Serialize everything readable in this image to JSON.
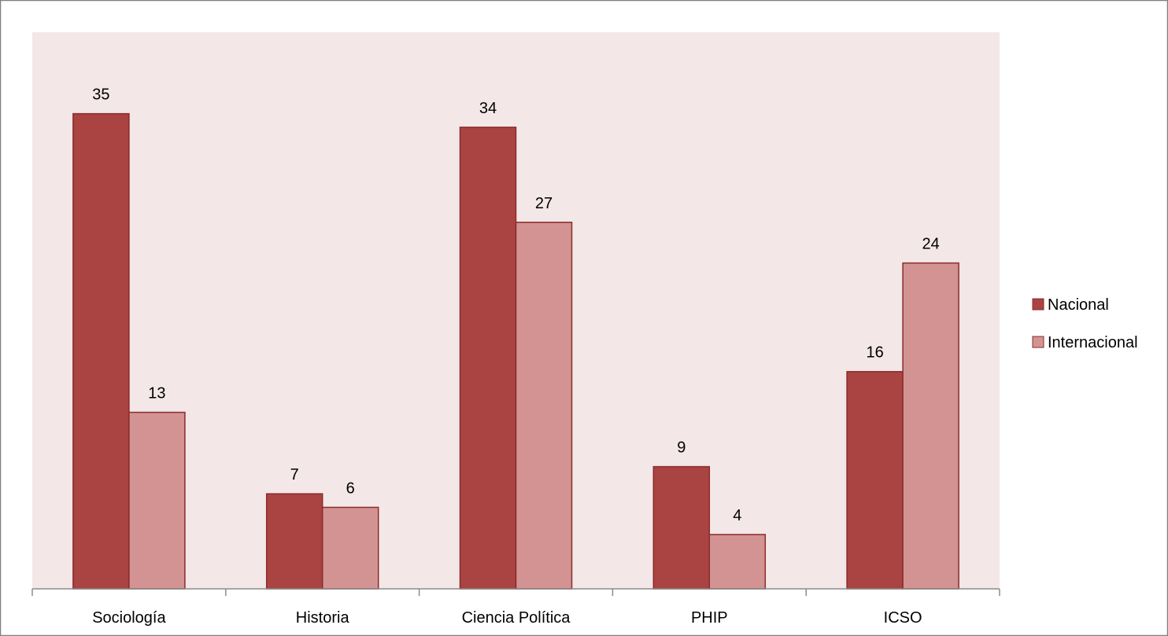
{
  "chart_data": {
    "type": "bar",
    "categories": [
      "Sociología",
      "Historia",
      "Ciencia Política",
      "PHIP",
      "ICSO"
    ],
    "series": [
      {
        "name": "Nacional",
        "values": [
          35,
          7,
          34,
          9,
          16
        ],
        "color": "#a94442"
      },
      {
        "name": "Internacional",
        "values": [
          13,
          6,
          27,
          4,
          24
        ],
        "color": "#d39393"
      }
    ],
    "ylim": [
      0,
      41
    ],
    "grid": false,
    "legend": "right",
    "plot_background": "#f3e7e7",
    "border_color": "#7f7f7f"
  }
}
